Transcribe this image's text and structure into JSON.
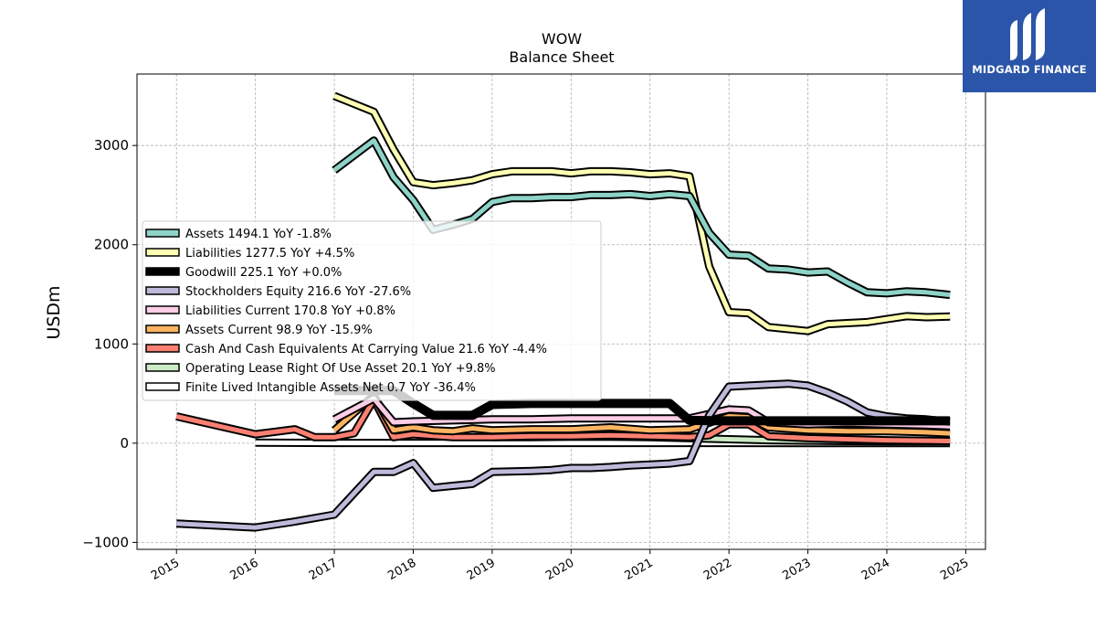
{
  "chart_data": {
    "type": "line",
    "title": "WOW",
    "subtitle": "Balance  Sheet",
    "xlabel": "",
    "ylabel": "USDm",
    "xlim": [
      2014.5,
      2025.25
    ],
    "ylim": [
      -1070,
      3720
    ],
    "yticks": [
      -1000,
      0,
      1000,
      2000,
      3000
    ],
    "xticks": [
      "2015",
      "2016",
      "2017",
      "2018",
      "2019",
      "2020",
      "2021",
      "2022",
      "2023",
      "2024",
      "2025"
    ],
    "grid": true,
    "legend_position": "center-left",
    "series": [
      {
        "name": "Assets  1494.1 YoY -1.8%",
        "color": "#8dd3c7",
        "x": [
          2017.0,
          2017.5,
          2017.75,
          2018.0,
          2018.25,
          2018.5,
          2018.75,
          2019.0,
          2019.25,
          2019.5,
          2019.75,
          2020.0,
          2020.25,
          2020.5,
          2020.75,
          2021.0,
          2021.25,
          2021.5,
          2021.75,
          2022.0,
          2022.25,
          2022.5,
          2022.75,
          2023.0,
          2023.25,
          2023.5,
          2023.75,
          2024.0,
          2024.25,
          2024.5,
          2024.8
        ],
        "y": [
          2750,
          3050,
          2680,
          2450,
          2150,
          2200,
          2260,
          2430,
          2470,
          2470,
          2480,
          2480,
          2500,
          2500,
          2510,
          2490,
          2510,
          2490,
          2120,
          1900,
          1890,
          1760,
          1750,
          1720,
          1730,
          1620,
          1520,
          1510,
          1530,
          1520,
          1494.1
        ]
      },
      {
        "name": "Liabilities  1277.5 YoY +4.5%",
        "color": "#ffffb3",
        "x": [
          2017.0,
          2017.5,
          2017.75,
          2018.0,
          2018.25,
          2018.5,
          2018.75,
          2019.0,
          2019.25,
          2019.5,
          2019.75,
          2020.0,
          2020.25,
          2020.5,
          2020.75,
          2021.0,
          2021.25,
          2021.5,
          2021.75,
          2022.0,
          2022.25,
          2022.5,
          2022.75,
          2023.0,
          2023.25,
          2023.5,
          2023.75,
          2024.0,
          2024.25,
          2024.5,
          2024.8
        ],
        "y": [
          3500,
          3340,
          2960,
          2630,
          2600,
          2620,
          2650,
          2710,
          2740,
          2740,
          2740,
          2720,
          2740,
          2740,
          2730,
          2710,
          2720,
          2690,
          1780,
          1320,
          1310,
          1170,
          1150,
          1130,
          1200,
          1210,
          1220,
          1250,
          1280,
          1270,
          1277.5
        ]
      },
      {
        "name": "Goodwill  225.1 YoY +0.0%",
        "color": "#000000",
        "x": [
          2017.0,
          2017.75,
          2018.0,
          2018.25,
          2018.5,
          2018.75,
          2019.0,
          2019.5,
          2020.0,
          2020.5,
          2021.0,
          2021.25,
          2021.5,
          2022.0,
          2022.5,
          2023.0,
          2023.5,
          2024.0,
          2024.5,
          2024.8
        ],
        "y": [
          530,
          530,
          400,
          280,
          280,
          280,
          390,
          400,
          400,
          400,
          400,
          400,
          230,
          225.1,
          225.1,
          225.1,
          225.1,
          225.1,
          225.1,
          225.1
        ]
      },
      {
        "name": "Stockholders Equity  216.6 YoY -27.6%",
        "color": "#bebada",
        "x": [
          2015.0,
          2016.0,
          2016.5,
          2017.0,
          2017.5,
          2017.75,
          2018.0,
          2018.25,
          2018.5,
          2018.75,
          2019.0,
          2019.25,
          2019.5,
          2019.75,
          2020.0,
          2020.25,
          2020.5,
          2020.75,
          2021.0,
          2021.25,
          2021.5,
          2021.75,
          2022.0,
          2022.25,
          2022.5,
          2022.75,
          2023.0,
          2023.25,
          2023.5,
          2023.75,
          2024.0,
          2024.25,
          2024.5,
          2024.8
        ],
        "y": [
          -810,
          -850,
          -790,
          -720,
          -290,
          -290,
          -200,
          -450,
          -430,
          -410,
          -290,
          -285,
          -280,
          -270,
          -250,
          -250,
          -240,
          -225,
          -215,
          -205,
          -180,
          280,
          570,
          580,
          590,
          600,
          580,
          510,
          420,
          310,
          270,
          250,
          240,
          216.6
        ]
      },
      {
        "name": "Liabilities Current  170.8 YoY +0.8%",
        "color": "#fccde5",
        "x": [
          2017.0,
          2017.5,
          2017.75,
          2018.0,
          2018.5,
          2019.0,
          2019.5,
          2020.0,
          2020.5,
          2021.0,
          2021.5,
          2022.0,
          2022.25,
          2022.5,
          2023.0,
          2023.5,
          2024.0,
          2024.5,
          2024.8
        ],
        "y": [
          240,
          450,
          210,
          220,
          230,
          240,
          240,
          250,
          250,
          250,
          250,
          340,
          330,
          210,
          190,
          200,
          190,
          180,
          170.8
        ]
      },
      {
        "name": "Assets Current  98.9 YoY -15.9%",
        "color": "#fdb462",
        "x": [
          2017.0,
          2017.5,
          2017.75,
          2018.0,
          2018.25,
          2018.5,
          2018.75,
          2019.0,
          2019.5,
          2020.0,
          2020.5,
          2021.0,
          2021.5,
          2022.0,
          2022.25,
          2022.5,
          2023.0,
          2023.5,
          2024.0,
          2024.5,
          2024.8
        ],
        "y": [
          130,
          480,
          130,
          160,
          130,
          120,
          150,
          130,
          140,
          140,
          160,
          130,
          140,
          270,
          260,
          160,
          130,
          120,
          120,
          110,
          98.9
        ]
      },
      {
        "name": "Cash And Cash Equivalents At Carrying Value  21.6 YoY -4.4%",
        "color": "#fb8072",
        "x": [
          2015.0,
          2016.0,
          2016.5,
          2016.75,
          2017.0,
          2017.25,
          2017.5,
          2017.75,
          2018.0,
          2018.5,
          2019.0,
          2019.5,
          2020.0,
          2020.5,
          2021.0,
          2021.5,
          2021.75,
          2022.0,
          2022.25,
          2022.5,
          2023.0,
          2023.5,
          2024.0,
          2024.5,
          2024.8
        ],
        "y": [
          270,
          90,
          140,
          60,
          60,
          100,
          440,
          60,
          90,
          60,
          60,
          70,
          70,
          80,
          70,
          60,
          80,
          190,
          190,
          70,
          50,
          40,
          30,
          25,
          21.6
        ]
      },
      {
        "name": "Operating Lease Right Of Use Asset  20.1 YoY +9.8%",
        "color": "#ccebc5",
        "x": [
          2019.0,
          2019.5,
          2020.0,
          2020.5,
          2021.0,
          2021.5,
          2022.0,
          2022.5,
          2023.0,
          2023.5,
          2024.0,
          2024.5,
          2024.8
        ],
        "y": [
          60,
          60,
          65,
          65,
          60,
          50,
          40,
          30,
          25,
          22,
          20,
          20,
          20.1
        ]
      },
      {
        "name": "Finite Lived Intangible Assets Net  0.7 YoY -36.4%",
        "color": "#ffffff",
        "x": [
          2016.0,
          2017.0,
          2018.0,
          2019.0,
          2020.0,
          2021.0,
          2022.0,
          2023.0,
          2024.0,
          2024.8
        ],
        "y": [
          5,
          2,
          2,
          2,
          2,
          2,
          2,
          1,
          1,
          0.7
        ]
      }
    ]
  },
  "logo": {
    "text": "MIDGARD FINANCE",
    "color": "#2a55a8"
  }
}
